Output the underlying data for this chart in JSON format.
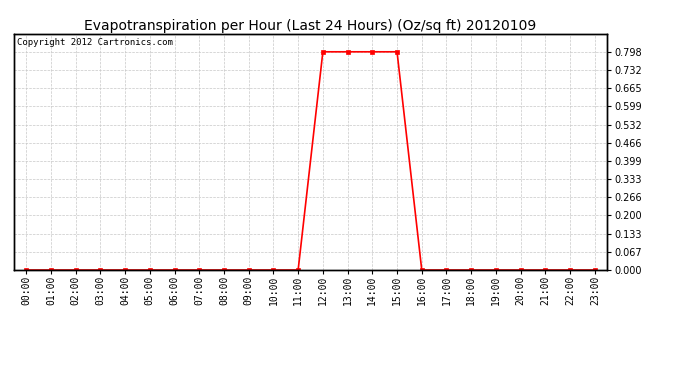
{
  "title": "Evapotranspiration per Hour (Last 24 Hours) (Oz/sq ft) 20120109",
  "copyright_text": "Copyright 2012 Cartronics.com",
  "hours": [
    0,
    1,
    2,
    3,
    4,
    5,
    6,
    7,
    8,
    9,
    10,
    11,
    12,
    13,
    14,
    15,
    16,
    17,
    18,
    19,
    20,
    21,
    22,
    23
  ],
  "hour_labels": [
    "00:00",
    "01:00",
    "02:00",
    "03:00",
    "04:00",
    "05:00",
    "06:00",
    "07:00",
    "08:00",
    "09:00",
    "10:00",
    "11:00",
    "12:00",
    "13:00",
    "14:00",
    "15:00",
    "16:00",
    "17:00",
    "18:00",
    "19:00",
    "20:00",
    "21:00",
    "22:00",
    "23:00"
  ],
  "values": [
    0.0,
    0.0,
    0.0,
    0.0,
    0.0,
    0.0,
    0.0,
    0.0,
    0.0,
    0.0,
    0.0,
    0.0,
    0.798,
    0.798,
    0.798,
    0.798,
    0.0,
    0.0,
    0.0,
    0.0,
    0.0,
    0.0,
    0.0,
    0.0
  ],
  "line_color": "#ff0000",
  "marker": "s",
  "marker_size": 3,
  "ylim": [
    0.0,
    0.864
  ],
  "yticks": [
    0.0,
    0.067,
    0.133,
    0.2,
    0.266,
    0.333,
    0.399,
    0.466,
    0.532,
    0.599,
    0.665,
    0.732,
    0.798
  ],
  "background_color": "#ffffff",
  "plot_bg_color": "#ffffff",
  "grid_color": "#c8c8c8",
  "title_fontsize": 10,
  "copyright_fontsize": 6.5,
  "tick_fontsize": 7,
  "border_color": "#000000"
}
